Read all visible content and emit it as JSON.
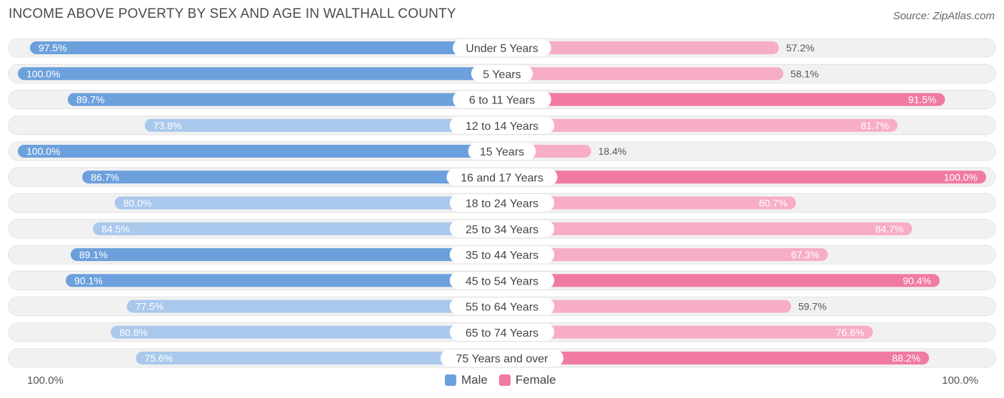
{
  "title": "INCOME ABOVE POVERTY BY SEX AND AGE IN WALTHALL COUNTY",
  "source": "Source: ZipAtlas.com",
  "axis": {
    "left_label": "100.0%",
    "right_label": "100.0%"
  },
  "legend": {
    "male": "Male",
    "female": "Female"
  },
  "colors": {
    "male_strong": "#6ca0dc",
    "male_light": "#a9c8ec",
    "female_strong": "#f07aa0",
    "female_light": "#f7adc6",
    "track": "#f1f1f1"
  },
  "chart_data": {
    "type": "bar",
    "orientation": "horizontal-diverging",
    "categories": [
      "Under 5 Years",
      "5 Years",
      "6 to 11 Years",
      "12 to 14 Years",
      "15 Years",
      "16 and 17 Years",
      "18 to 24 Years",
      "25 to 34 Years",
      "35 to 44 Years",
      "45 to 54 Years",
      "55 to 64 Years",
      "65 to 74 Years",
      "75 Years and over"
    ],
    "series": [
      {
        "name": "Male",
        "values": [
          97.5,
          100.0,
          89.7,
          73.8,
          100.0,
          86.7,
          80.0,
          84.5,
          89.1,
          90.1,
          77.5,
          80.8,
          75.6
        ]
      },
      {
        "name": "Female",
        "values": [
          57.2,
          58.1,
          91.5,
          81.7,
          18.4,
          100.0,
          60.7,
          84.7,
          67.3,
          90.4,
          59.7,
          76.6,
          88.2
        ]
      }
    ],
    "value_labels": {
      "Male": [
        "97.5%",
        "100.0%",
        "89.7%",
        "73.8%",
        "100.0%",
        "86.7%",
        "80.0%",
        "84.5%",
        "89.1%",
        "90.1%",
        "77.5%",
        "80.8%",
        "75.6%"
      ],
      "Female": [
        "57.2%",
        "58.1%",
        "91.5%",
        "81.7%",
        "18.4%",
        "100.0%",
        "60.7%",
        "84.7%",
        "67.3%",
        "90.4%",
        "59.7%",
        "76.6%",
        "88.2%"
      ]
    },
    "xlim": [
      0,
      100
    ],
    "legend_position": "bottom-center"
  }
}
